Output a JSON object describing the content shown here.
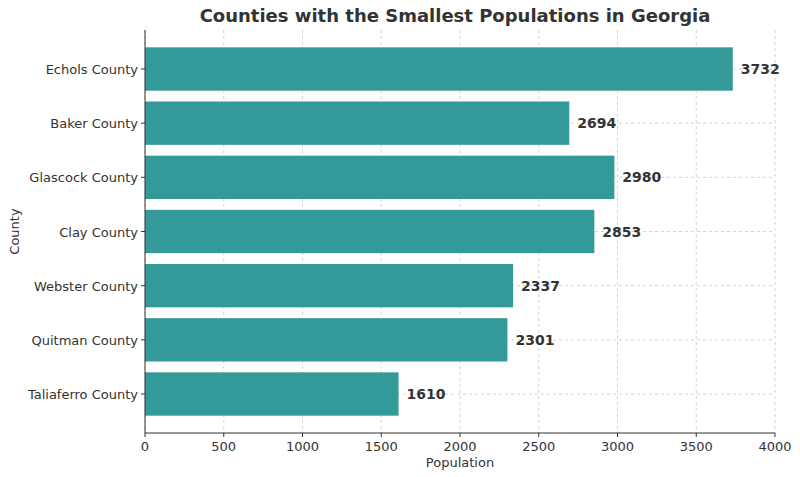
{
  "chart_data": {
    "type": "bar",
    "orientation": "horizontal",
    "title": "Counties with the Smallest Populations in Georgia",
    "x_label": "Population",
    "y_label": "County",
    "categories": [
      "Echols County",
      "Baker County",
      "Glascock County",
      "Clay County",
      "Webster County",
      "Quitman County",
      "Taliaferro County"
    ],
    "values": [
      3732,
      2694,
      2980,
      2853,
      2337,
      2301,
      1610
    ],
    "color": "#339999",
    "xlim": [
      0,
      4000
    ],
    "xticks": [
      0,
      500,
      1000,
      1500,
      2000,
      2500,
      3000,
      3500,
      4000
    ],
    "grid": true,
    "data_labels": true
  }
}
